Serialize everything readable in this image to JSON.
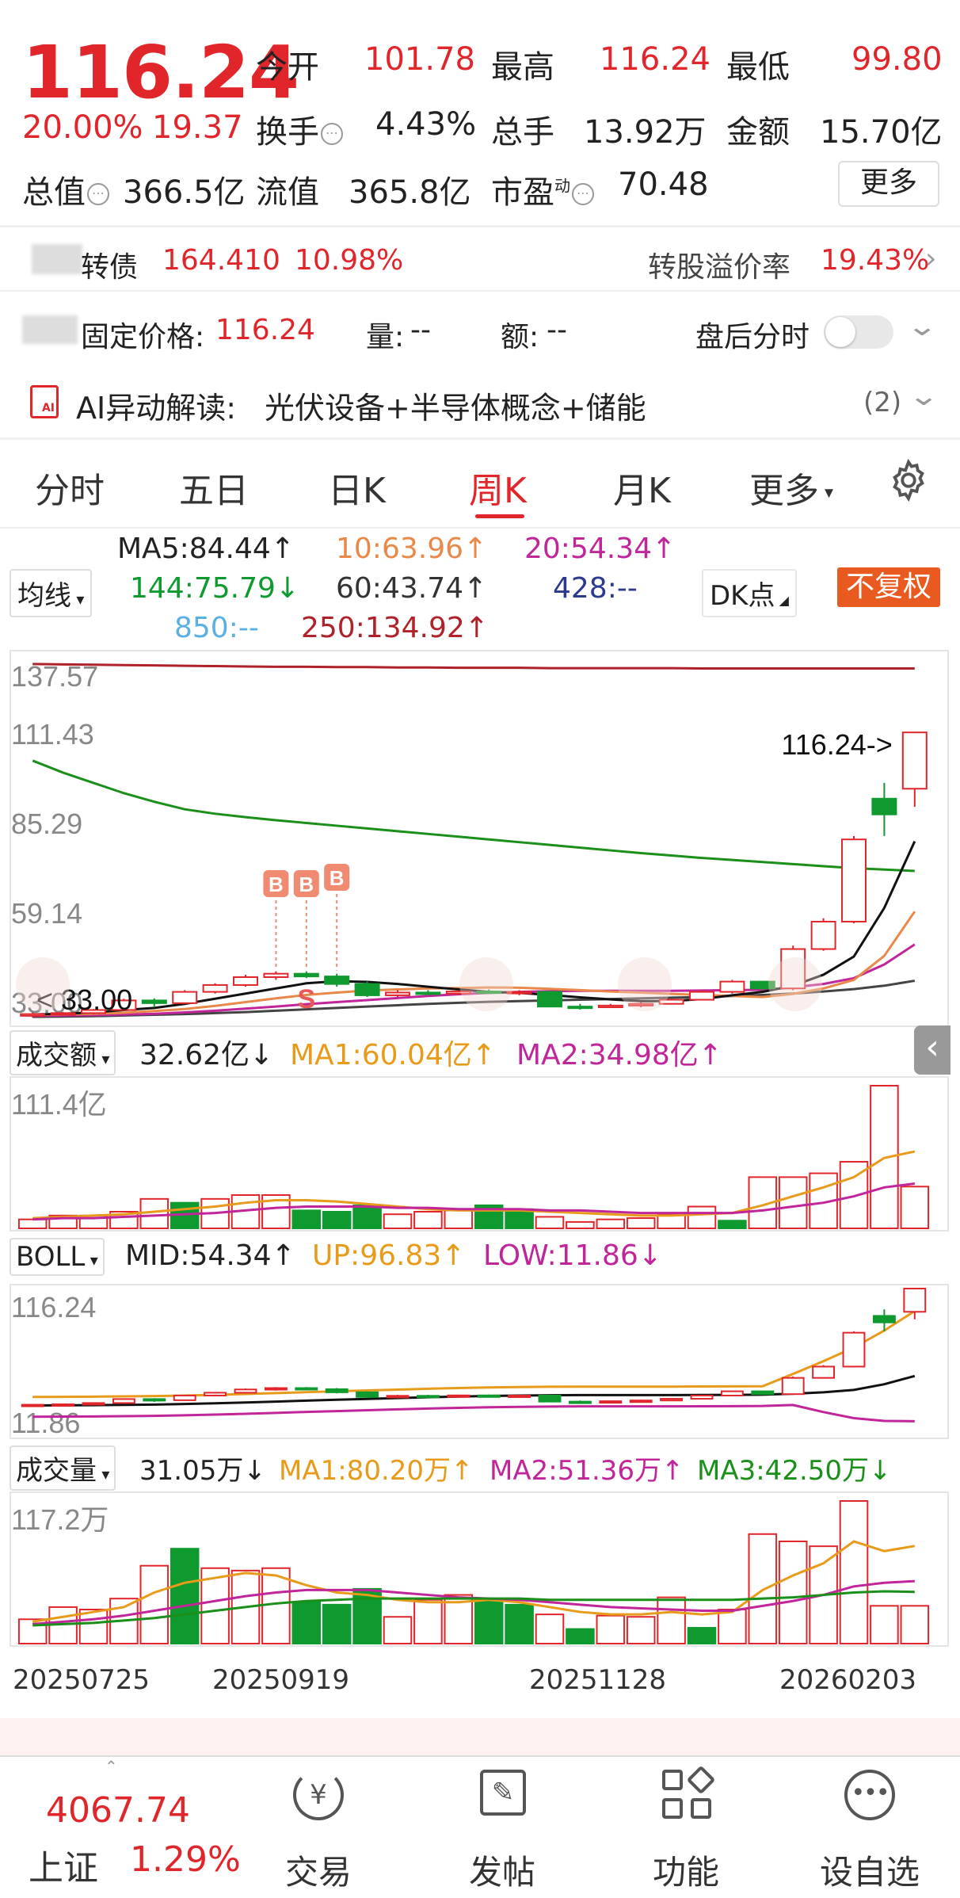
{
  "quote": {
    "price": "116.24",
    "change_pct": "20.00%",
    "change": "19.37",
    "open_label": "今开",
    "open": "101.78",
    "high_label": "最高",
    "high": "116.24",
    "low_label": "最低",
    "low": "99.80",
    "turnover_label": "换手",
    "turnover": "4.43%",
    "volume_label": "总手",
    "volume": "13.92万",
    "amount_label": "金额",
    "amount": "15.70亿",
    "mktcap_label": "总值",
    "mktcap": "366.5亿",
    "float_label": "流值",
    "float": "365.8亿",
    "pe_label": "市盈",
    "pe_sup": "动",
    "pe": "70.48",
    "more": "更多"
  },
  "bond": {
    "name": "转债",
    "price": "164.410",
    "pct": "10.98%",
    "premium_label": "转股溢价率",
    "premium": "19.43%"
  },
  "after_hours": {
    "label": "固定价格:",
    "price": "116.24",
    "vol_label": "量:",
    "vol": "--",
    "amt_label": "额:",
    "amt": "--",
    "toggle_label": "盘后分时"
  },
  "ai": {
    "title": "AI异动解读:",
    "text": "光伏设备+半导体概念+储能",
    "count": "(2)"
  },
  "tabs": [
    "分时",
    "五日",
    "日K",
    "周K",
    "月K",
    "更多"
  ],
  "ma_legend": {
    "selector": "均线",
    "ma5": "MA5:84.44↑",
    "ma10": "10:63.96↑",
    "ma20": "20:54.34↑",
    "ma144": "144:75.79↓",
    "ma60": "60:43.74↑",
    "ma428": "428:--",
    "ma850": "850:--",
    "ma250": "250:134.92↑",
    "dk": "DK点",
    "adjust": "不复权"
  },
  "colors": {
    "up": "#e0262b",
    "down": "#0e9a2e",
    "ma5": "#111111",
    "ma10": "#e8894a",
    "ma20": "#c0259a",
    "ma60": "#444444",
    "ma144": "#1a8f1a",
    "ma250": "#b0222a"
  },
  "chart_data": [
    {
      "type": "candlestick",
      "title": "",
      "y_ticks": [
        "137.57",
        "111.43",
        "85.29",
        "59.14",
        "33.00"
      ],
      "ylim": [
        33.0,
        137.57
      ],
      "last_label": "116.24->",
      "low_label": "33.00",
      "markers": [
        "B",
        "B",
        "B",
        "S"
      ],
      "x": [
        "20250725",
        "20250919",
        "20251128",
        "20260203"
      ],
      "candles": [
        [
          33.5,
          34.5,
          33.0,
          34.0
        ],
        [
          34.0,
          34.6,
          33.6,
          34.3
        ],
        [
          34.3,
          35.5,
          34.0,
          35.2
        ],
        [
          35.2,
          38.5,
          35.0,
          38.0
        ],
        [
          38.0,
          38.6,
          36.0,
          37.2
        ],
        [
          37.2,
          41.0,
          37.0,
          40.5
        ],
        [
          40.5,
          43.0,
          40.0,
          42.5
        ],
        [
          42.5,
          45.5,
          42.0,
          44.8
        ],
        [
          44.8,
          46.5,
          44.0,
          45.8
        ],
        [
          45.8,
          46.5,
          44.5,
          45.0
        ],
        [
          45.0,
          45.8,
          42.0,
          42.8
        ],
        [
          42.8,
          43.5,
          39.0,
          39.5
        ],
        [
          39.5,
          41.0,
          39.0,
          40.3
        ],
        [
          40.3,
          41.0,
          39.5,
          40.0
        ],
        [
          40.0,
          41.0,
          39.5,
          40.6
        ],
        [
          40.6,
          41.2,
          40.0,
          40.3
        ],
        [
          40.3,
          41.0,
          39.5,
          40.5
        ],
        [
          40.5,
          40.8,
          36.0,
          36.2
        ],
        [
          36.2,
          37.0,
          35.3,
          36.0
        ],
        [
          36.0,
          37.0,
          35.8,
          36.5
        ],
        [
          36.5,
          37.5,
          36.0,
          37.0
        ],
        [
          37.0,
          38.5,
          36.8,
          38.2
        ],
        [
          38.2,
          41.0,
          38.0,
          40.5
        ],
        [
          40.5,
          44.0,
          40.0,
          43.5
        ],
        [
          43.5,
          42.5,
          41.0,
          41.5
        ],
        [
          41.5,
          54.0,
          41.0,
          53.0
        ],
        [
          53.0,
          62.0,
          52.5,
          61.0
        ],
        [
          61.0,
          86.0,
          60.5,
          85.0
        ],
        [
          96.9,
          101.5,
          86.0,
          92.3
        ],
        [
          99.8,
          116.24,
          94.5,
          116.24
        ]
      ],
      "ma5": [
        33.9,
        34.1,
        34.5,
        35.2,
        35.8,
        37.0,
        38.5,
        40.0,
        41.5,
        43.0,
        43.6,
        43.4,
        42.8,
        42.0,
        41.2,
        40.5,
        40.2,
        39.6,
        38.9,
        38.3,
        37.8,
        37.8,
        38.4,
        39.5,
        40.5,
        42.3,
        45.5,
        50.8,
        65.0,
        84.44
      ],
      "ma10": [
        33.8,
        33.9,
        34.1,
        34.4,
        34.9,
        35.5,
        36.4,
        37.5,
        38.6,
        39.6,
        40.3,
        40.9,
        41.2,
        41.5,
        41.6,
        41.8,
        41.7,
        41.4,
        41.0,
        40.6,
        40.3,
        39.9,
        39.6,
        39.3,
        39.0,
        39.9,
        41.5,
        44.0,
        51.0,
        63.96
      ],
      "ma20": [
        33.5,
        33.6,
        33.7,
        33.9,
        34.1,
        34.5,
        35.0,
        35.6,
        36.2,
        36.9,
        37.5,
        38.1,
        38.7,
        39.3,
        39.8,
        40.2,
        40.5,
        40.7,
        40.8,
        40.8,
        40.8,
        40.8,
        40.9,
        41.0,
        41.1,
        41.8,
        42.8,
        44.5,
        48.5,
        54.34
      ],
      "ma60": [
        33.2,
        33.3,
        33.4,
        33.6,
        33.8,
        34.0,
        34.3,
        34.6,
        35.0,
        35.4,
        35.8,
        36.2,
        36.6,
        37.0,
        37.3,
        37.6,
        37.8,
        38.0,
        38.2,
        38.4,
        38.6,
        38.8,
        39.0,
        39.3,
        39.6,
        40.0,
        40.6,
        41.3,
        42.3,
        43.74
      ],
      "ma144": [
        108.0,
        104.5,
        101.5,
        98.5,
        96.0,
        93.8,
        92.5,
        91.5,
        90.6,
        89.8,
        89.0,
        88.2,
        87.4,
        86.6,
        85.8,
        85.0,
        84.2,
        83.4,
        82.6,
        81.8,
        81.0,
        80.3,
        79.6,
        79.0,
        78.4,
        77.8,
        77.2,
        76.6,
        76.2,
        75.79
      ],
      "ma250": [
        136.2,
        136.1,
        136.0,
        135.9,
        135.8,
        135.7,
        135.6,
        135.5,
        135.4,
        135.4,
        135.3,
        135.3,
        135.2,
        135.2,
        135.1,
        135.1,
        135.1,
        135.0,
        135.0,
        135.0,
        135.0,
        135.0,
        134.9,
        134.9,
        134.9,
        134.9,
        134.9,
        134.9,
        134.92,
        134.92
      ]
    },
    {
      "type": "bar",
      "title": "成交额",
      "legend": {
        "selector": "成交额",
        "value": "32.62亿↓",
        "ma1": "MA1:60.04亿↑",
        "ma2": "MA2:34.98亿↑"
      },
      "y_top": "111.4亿",
      "ylim": [
        0,
        111.4
      ],
      "values": [
        7,
        10,
        10,
        13,
        23,
        20,
        23,
        26,
        26,
        14,
        13,
        18,
        11,
        13,
        14,
        18,
        15,
        9,
        5,
        7,
        8,
        11,
        17,
        6,
        40,
        40,
        43,
        52,
        111.4,
        32.62
      ],
      "up": [
        1,
        1,
        1,
        1,
        1,
        0,
        1,
        1,
        1,
        0,
        0,
        0,
        1,
        1,
        1,
        0,
        0,
        1,
        1,
        1,
        1,
        1,
        1,
        0,
        1,
        1,
        1,
        1,
        1,
        1
      ],
      "ma1": [
        8,
        9,
        10,
        11,
        13,
        15,
        17,
        20,
        22,
        22,
        21,
        19,
        17,
        15,
        14,
        14,
        14,
        13,
        12,
        11,
        10,
        10,
        11,
        12,
        18,
        25,
        32,
        40,
        55,
        60.04
      ],
      "ma2": [
        7,
        8,
        8,
        9,
        10,
        11,
        12,
        14,
        16,
        17,
        17,
        17,
        16,
        16,
        15,
        15,
        15,
        14,
        14,
        13,
        12,
        12,
        12,
        12,
        14,
        17,
        20,
        25,
        32,
        34.98
      ]
    },
    {
      "type": "bar",
      "title": "BOLL",
      "legend": {
        "selector": "BOLL",
        "mid": "MID:54.34↑",
        "up": "UP:96.83↑",
        "low": "LOW:11.86↓"
      },
      "y_top": "116.24",
      "y_bottom": "11.86",
      "ylim": [
        11.86,
        116.24
      ]
    },
    {
      "type": "bar",
      "title": "成交量",
      "legend": {
        "selector": "成交量",
        "value": "31.05万↓",
        "ma1": "MA1:80.20万↑",
        "ma2": "MA2:51.36万↑",
        "ma3": "MA3:42.50万↓"
      },
      "y_top": "117.2万",
      "ylim": [
        0,
        117.2
      ],
      "values": [
        20,
        30,
        28,
        37,
        64,
        78,
        62,
        60,
        62,
        34,
        32,
        45,
        22,
        36,
        40,
        36,
        32,
        24,
        12,
        23,
        22,
        38,
        13,
        28,
        90,
        84,
        80,
        117.2,
        31.05,
        31.05
      ],
      "up": [
        1,
        1,
        1,
        1,
        1,
        0,
        1,
        1,
        1,
        0,
        0,
        0,
        1,
        1,
        1,
        0,
        0,
        1,
        0,
        1,
        1,
        1,
        0,
        1,
        1,
        1,
        1,
        1,
        1,
        1
      ],
      "ma1": [
        18,
        22,
        26,
        30,
        42,
        50,
        54,
        58,
        56,
        48,
        42,
        40,
        36,
        34,
        34,
        36,
        34,
        30,
        26,
        24,
        24,
        26,
        24,
        26,
        44,
        56,
        66,
        84,
        76,
        80.2
      ],
      "ma2": [
        16,
        18,
        20,
        23,
        27,
        31,
        35,
        39,
        42,
        44,
        44,
        44,
        42,
        40,
        38,
        37,
        36,
        34,
        32,
        30,
        29,
        28,
        27,
        27,
        31,
        35,
        40,
        47,
        50,
        51.36
      ],
      "ma3": [
        15,
        16,
        17,
        19,
        21,
        24,
        27,
        30,
        33,
        35,
        36,
        37,
        37,
        37,
        37,
        37,
        37,
        36,
        36,
        36,
        36,
        36,
        36,
        36,
        37,
        38,
        40,
        42,
        43,
        42.5
      ],
      "x_labels": [
        "20250725",
        "20250919",
        "20251128",
        "20260203"
      ]
    }
  ],
  "nav": {
    "index_value": "4067.74",
    "index_name": "上证",
    "index_pct": "1.29%",
    "trade": "交易",
    "post": "发帖",
    "func": "功能",
    "watchlist": "设自选"
  }
}
